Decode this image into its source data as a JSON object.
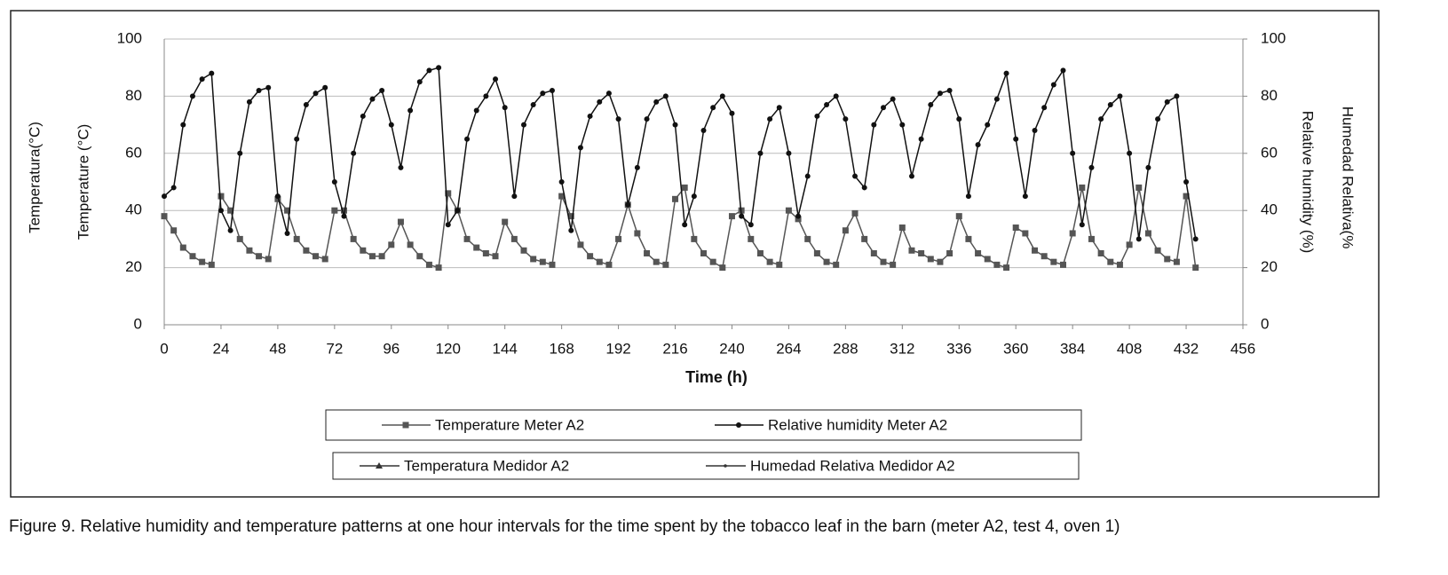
{
  "chart_data": {
    "type": "line",
    "caption": "Figure 9. Relative humidity and temperature patterns at one hour intervals for the time spent by the tobacco leaf in the barn (meter A2, test 4, oven 1)",
    "x_label": "Time (h)",
    "y_label": "Temperature (°C)",
    "y_label_alt": "Temperatura(°C)",
    "y2_label": "Relative humidity (%)",
    "y2_label_alt": "Humedad Relativa(%",
    "legend_alt": [
      "Temperatura Medidor A2",
      "Humedad Relativa Medidor A2"
    ],
    "xlim": [
      0,
      456
    ],
    "xticks": [
      0,
      24,
      48,
      72,
      96,
      120,
      144,
      168,
      192,
      216,
      240,
      264,
      288,
      312,
      336,
      360,
      384,
      408,
      432,
      456
    ],
    "ylim": [
      0,
      100
    ],
    "yticks": [
      0,
      20,
      40,
      60,
      80,
      100
    ],
    "y2lim": [
      0,
      100
    ],
    "y2ticks": [
      0,
      20,
      40,
      60,
      80,
      100
    ],
    "grid": true,
    "x": [
      0,
      4,
      8,
      12,
      16,
      20,
      24,
      28,
      32,
      36,
      40,
      44,
      48,
      52,
      56,
      60,
      64,
      68,
      72,
      76,
      80,
      84,
      88,
      92,
      96,
      100,
      104,
      108,
      112,
      116,
      120,
      124,
      128,
      132,
      136,
      140,
      144,
      148,
      152,
      156,
      160,
      164,
      168,
      172,
      176,
      180,
      184,
      188,
      192,
      196,
      200,
      204,
      208,
      212,
      216,
      220,
      224,
      228,
      232,
      236,
      240,
      244,
      248,
      252,
      256,
      260,
      264,
      268,
      272,
      276,
      280,
      284,
      288,
      292,
      296,
      300,
      304,
      308,
      312,
      316,
      320,
      324,
      328,
      332,
      336,
      340,
      344,
      348,
      352,
      356,
      360,
      364,
      368,
      372,
      376,
      380,
      384,
      388,
      392,
      396,
      400,
      404,
      408,
      412,
      416,
      420,
      424,
      428,
      432,
      436
    ],
    "series": [
      {
        "name": "Temperature Meter A2",
        "color": "#555555",
        "marker": "square",
        "values": [
          38,
          33,
          27,
          24,
          22,
          21,
          45,
          40,
          30,
          26,
          24,
          23,
          44,
          40,
          30,
          26,
          24,
          23,
          40,
          40,
          30,
          26,
          24,
          24,
          28,
          36,
          28,
          24,
          21,
          20,
          46,
          40,
          30,
          27,
          25,
          24,
          36,
          30,
          26,
          23,
          22,
          21,
          45,
          38,
          28,
          24,
          22,
          21,
          30,
          42,
          32,
          25,
          22,
          21,
          44,
          48,
          30,
          25,
          22,
          20,
          38,
          40,
          30,
          25,
          22,
          21,
          40,
          37,
          30,
          25,
          22,
          21,
          33,
          39,
          30,
          25,
          22,
          21,
          34,
          26,
          25,
          23,
          22,
          25,
          38,
          30,
          25,
          23,
          21,
          20,
          34,
          32,
          26,
          24,
          22,
          21,
          32,
          48,
          30,
          25,
          22,
          21,
          28,
          48,
          32,
          26,
          23,
          22,
          45,
          20
        ]
      },
      {
        "name": "Relative humidity Meter A2",
        "color": "#111111",
        "marker": "circle",
        "axis": "y2",
        "values": [
          45,
          48,
          70,
          80,
          86,
          88,
          40,
          33,
          60,
          78,
          82,
          83,
          45,
          32,
          65,
          77,
          81,
          83,
          50,
          38,
          60,
          73,
          79,
          82,
          70,
          55,
          75,
          85,
          89,
          90,
          35,
          40,
          65,
          75,
          80,
          86,
          76,
          45,
          70,
          77,
          81,
          82,
          50,
          33,
          62,
          73,
          78,
          81,
          72,
          42,
          55,
          72,
          78,
          80,
          70,
          35,
          45,
          68,
          76,
          80,
          74,
          38,
          35,
          60,
          72,
          76,
          60,
          38,
          52,
          73,
          77,
          80,
          72,
          52,
          48,
          70,
          76,
          79,
          70,
          52,
          65,
          77,
          81,
          82,
          72,
          45,
          63,
          70,
          79,
          88,
          65,
          45,
          68,
          76,
          84,
          89,
          60,
          35,
          55,
          72,
          77,
          80,
          60,
          30,
          55,
          72,
          78,
          80,
          50,
          30
        ]
      }
    ]
  }
}
